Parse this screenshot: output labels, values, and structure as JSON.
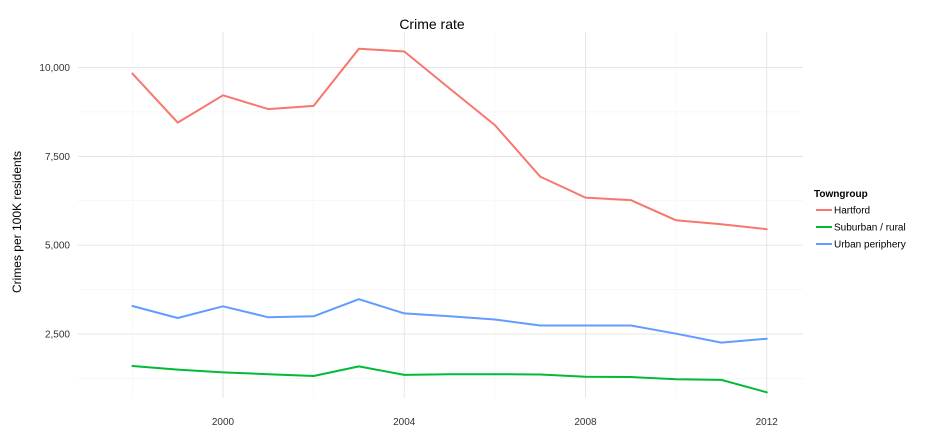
{
  "chart_data": {
    "type": "line",
    "title": "Crime rate",
    "xlabel": "",
    "ylabel": "Crimes per 100K residents",
    "x": [
      1998,
      1999,
      2000,
      2001,
      2002,
      2003,
      2004,
      2005,
      2006,
      2007,
      2008,
      2009,
      2010,
      2011,
      2012
    ],
    "xlim": [
      1996.8,
      2012.8
    ],
    "ylim": [
      700,
      11000
    ],
    "xticks": [
      2000,
      2004,
      2008,
      2012
    ],
    "xtick_labels": [
      "2000",
      "2004",
      "2008",
      "2012"
    ],
    "yticks": [
      2500,
      5000,
      7500,
      10000
    ],
    "ytick_labels": [
      "2,500",
      "5,000",
      "7,500",
      "10,000"
    ],
    "grid": true,
    "legend_title": "Towngroup",
    "legend_position": "right",
    "series": [
      {
        "name": "Hartford",
        "color": "#F8766D",
        "values": [
          9830,
          8450,
          9220,
          8830,
          8920,
          10530,
          10450,
          9410,
          8380,
          6930,
          6340,
          6270,
          5700,
          5590,
          5450
        ]
      },
      {
        "name": "Suburban / rural",
        "color": "#00BA38",
        "values": [
          1600,
          1500,
          1420,
          1370,
          1320,
          1590,
          1350,
          1370,
          1370,
          1360,
          1300,
          1290,
          1230,
          1210,
          860
        ]
      },
      {
        "name": "Urban periphery",
        "color": "#619CFF",
        "values": [
          3290,
          2950,
          3280,
          2970,
          3000,
          3480,
          3080,
          3000,
          2910,
          2740,
          2740,
          2740,
          2510,
          2260,
          2370
        ]
      }
    ]
  }
}
